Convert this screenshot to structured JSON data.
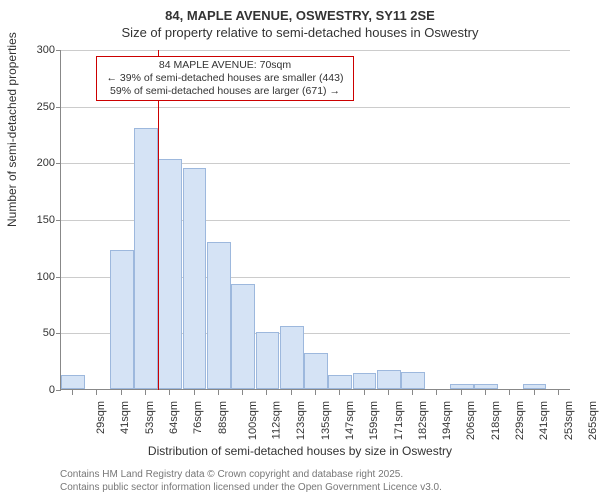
{
  "title_line1": "84, MAPLE AVENUE, OSWESTRY, SY11 2SE",
  "title_line2": "Size of property relative to semi-detached houses in Oswestry",
  "ylabel": "Number of semi-detached properties",
  "xlabel": "Distribution of semi-detached houses by size in Oswestry",
  "attribution_line1": "Contains HM Land Registry data © Crown copyright and database right 2025.",
  "attribution_line2": "Contains public sector information licensed under the Open Government Licence v3.0.",
  "chart": {
    "type": "histogram",
    "ylim": [
      0,
      300
    ],
    "ytick_step": 50,
    "background_color": "#ffffff",
    "grid_color": "#cccccc",
    "axis_color": "#888888",
    "bar_fill": "#d5e3f5",
    "bar_stroke": "#9db8dd",
    "marker_color": "#cc0000",
    "label_fontsize": 12,
    "tick_fontsize": 11,
    "x_categories": [
      "29sqm",
      "41sqm",
      "53sqm",
      "64sqm",
      "76sqm",
      "88sqm",
      "100sqm",
      "112sqm",
      "123sqm",
      "135sqm",
      "147sqm",
      "159sqm",
      "171sqm",
      "182sqm",
      "194sqm",
      "206sqm",
      "218sqm",
      "229sqm",
      "241sqm",
      "253sqm",
      "265sqm"
    ],
    "bar_values": [
      12,
      0,
      123,
      230,
      203,
      195,
      130,
      93,
      50,
      56,
      32,
      12,
      14,
      17,
      15,
      0,
      4,
      4,
      0,
      4,
      0
    ],
    "marker_position_sqm": 70,
    "annotation": {
      "line1": "84 MAPLE AVENUE: 70sqm",
      "line2": "← 39% of semi-detached houses are smaller (443)",
      "line3": "59% of semi-detached houses are larger (671) →"
    }
  }
}
